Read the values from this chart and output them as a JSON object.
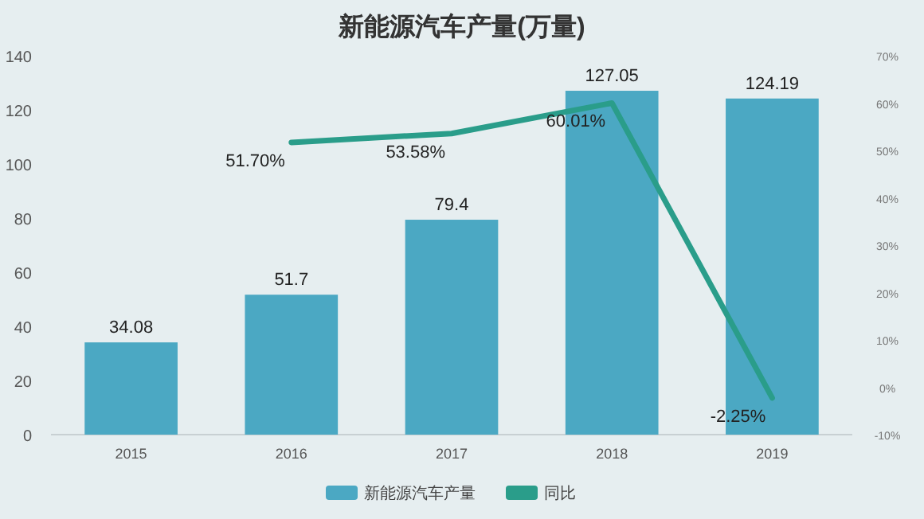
{
  "chart_data": {
    "type": "bar",
    "title": "新能源汽车产量(万量)",
    "categories": [
      "2015",
      "2016",
      "2017",
      "2018",
      "2019"
    ],
    "series": [
      {
        "name": "新能源汽车产量",
        "color": "#4ba8c3",
        "values": [
          34.08,
          51.7,
          79.4,
          127.05,
          124.19
        ],
        "value_labels": [
          "34.08",
          "51.7",
          "79.4",
          "127.05",
          "124.19"
        ]
      },
      {
        "name": "同比",
        "type": "line",
        "axis": "y2",
        "color": "#2a9d8a",
        "values": [
          null,
          51.7,
          53.58,
          60.01,
          -2.25
        ],
        "value_labels": [
          null,
          "51.70%",
          "53.58%",
          "60.01%",
          "-2.25%"
        ]
      }
    ],
    "ylim": [
      0,
      140
    ],
    "yticks": [
      0,
      20,
      40,
      60,
      80,
      100,
      120,
      140
    ],
    "y2lim": [
      -10,
      70
    ],
    "y2ticks": [
      {
        "value": -10,
        "label": "-10%"
      },
      {
        "value": 0,
        "label": "0%"
      },
      {
        "value": 10,
        "label": "10%"
      },
      {
        "value": 20,
        "label": "20%"
      },
      {
        "value": 30,
        "label": "30%"
      },
      {
        "value": 40,
        "label": "40%"
      },
      {
        "value": 50,
        "label": "50%"
      },
      {
        "value": 60,
        "label": "60%"
      },
      {
        "value": 70,
        "label": "70%"
      }
    ],
    "legend": "bottom",
    "marker": "none"
  }
}
